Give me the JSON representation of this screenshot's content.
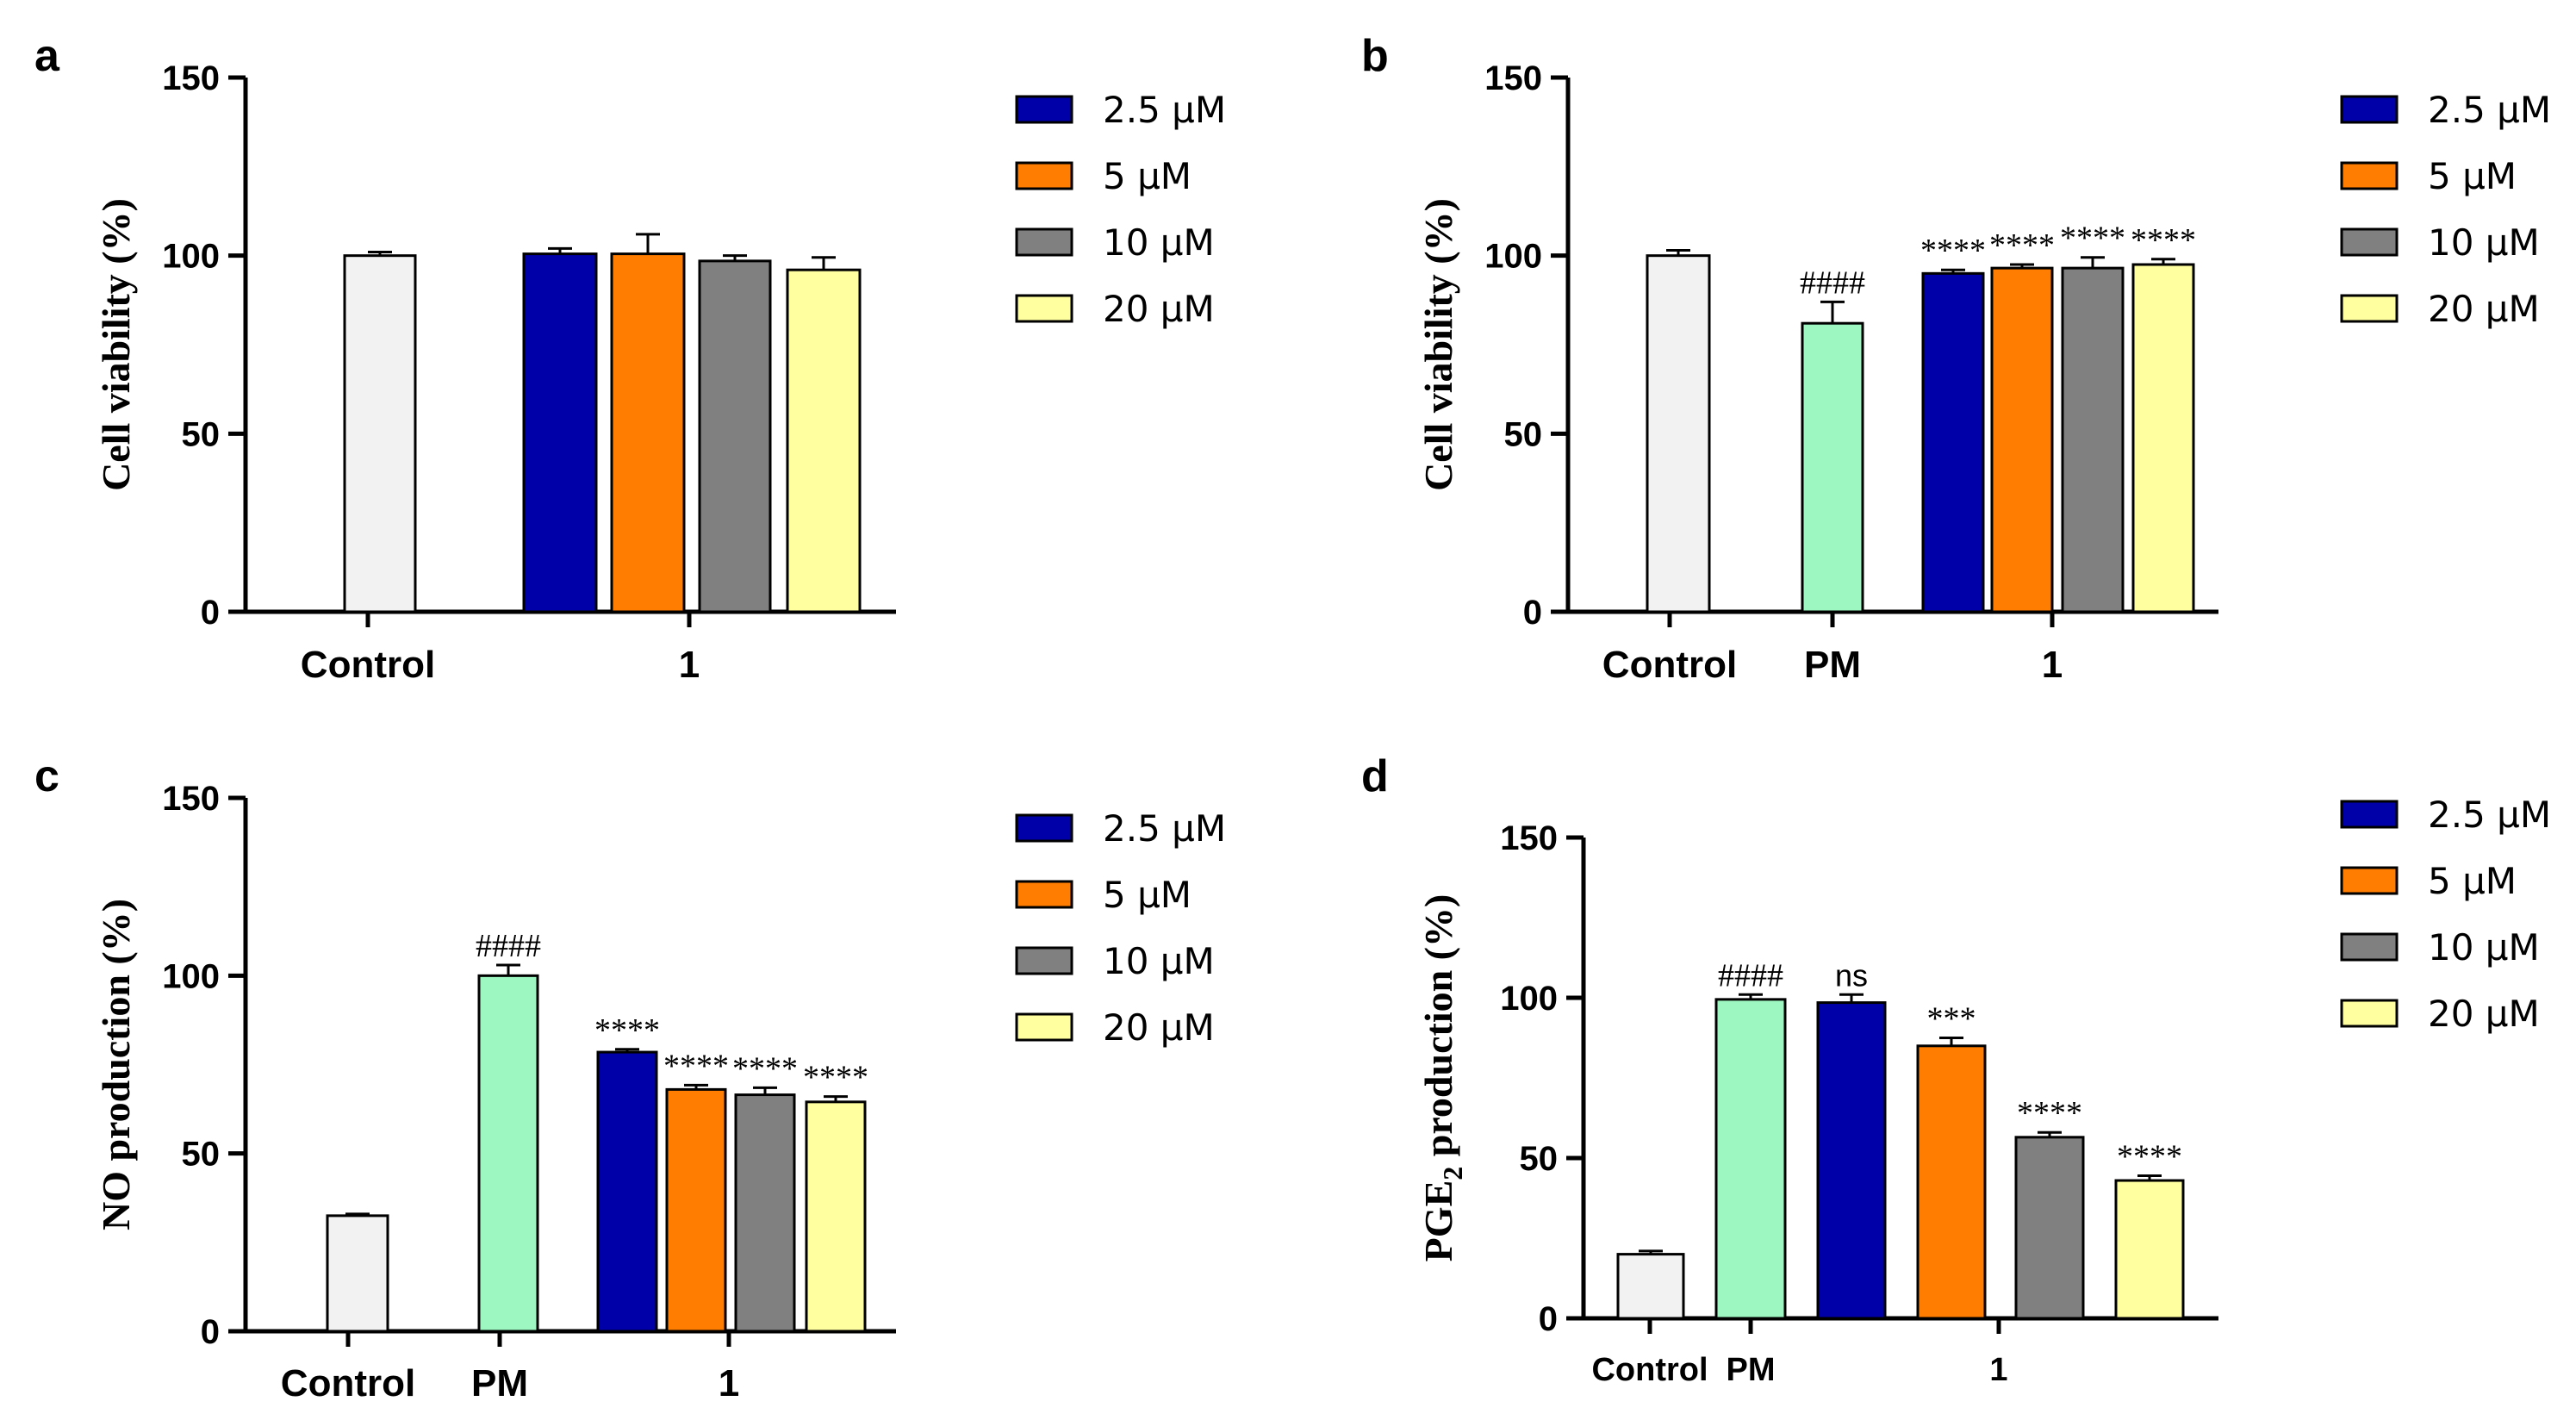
{
  "colors": {
    "control": "#f2f2f2",
    "pm": "#9cf7c0",
    "c2_5": "#0000a8",
    "c5": "#ff7d00",
    "c10": "#808080",
    "c20": "#ffffa0",
    "edge": "#000000"
  },
  "chart_data": [
    {
      "id": "a",
      "type": "bar",
      "panel_label": "a",
      "ylabel": "Cell viability (%)",
      "ylim": [
        0,
        150
      ],
      "yticks": [
        "0",
        "50",
        "100",
        "150"
      ],
      "group_labels": [
        "Control",
        "1"
      ],
      "bars": [
        {
          "label": "Control",
          "value": 100,
          "error": 1,
          "color": "control",
          "annotation": ""
        },
        {
          "label": "2.5 μM",
          "value": 100.5,
          "error": 1.5,
          "color": "c2_5",
          "annotation": ""
        },
        {
          "label": "5 μM",
          "value": 100.5,
          "error": 5.5,
          "color": "c5",
          "annotation": ""
        },
        {
          "label": "10 μM",
          "value": 98.5,
          "error": 1.5,
          "color": "c10",
          "annotation": ""
        },
        {
          "label": "20 μM",
          "value": 96,
          "error": 3.5,
          "color": "c20",
          "annotation": ""
        }
      ],
      "legend": [
        {
          "label": "2.5 μM",
          "color": "c2_5"
        },
        {
          "label": "5 μM",
          "color": "c5"
        },
        {
          "label": "10 μM",
          "color": "c10"
        },
        {
          "label": "20 μM",
          "color": "c20"
        }
      ]
    },
    {
      "id": "b",
      "type": "bar",
      "panel_label": "b",
      "ylabel": "Cell viability (%)",
      "ylim": [
        0,
        150
      ],
      "yticks": [
        "0",
        "50",
        "100",
        "150"
      ],
      "group_labels": [
        "Control",
        "PM",
        "1"
      ],
      "bars": [
        {
          "label": "Control",
          "value": 100,
          "error": 1.5,
          "color": "control",
          "annotation": ""
        },
        {
          "label": "PM",
          "value": 81,
          "error": 6,
          "color": "pm",
          "annotation": "####"
        },
        {
          "label": "2.5 μM",
          "value": 95,
          "error": 1,
          "color": "c2_5",
          "annotation": "****"
        },
        {
          "label": "5 μM",
          "value": 96.5,
          "error": 1,
          "color": "c5",
          "annotation": "****"
        },
        {
          "label": "10 μM",
          "value": 96.5,
          "error": 3,
          "color": "c10",
          "annotation": "****"
        },
        {
          "label": "20 μM",
          "value": 97.5,
          "error": 1.5,
          "color": "c20",
          "annotation": "****"
        }
      ],
      "legend": [
        {
          "label": "2.5 μM",
          "color": "c2_5"
        },
        {
          "label": "5 μM",
          "color": "c5"
        },
        {
          "label": "10 μM",
          "color": "c10"
        },
        {
          "label": "20 μM",
          "color": "c20"
        }
      ]
    },
    {
      "id": "c",
      "type": "bar",
      "panel_label": "c",
      "ylabel": "NO production (%)",
      "ylim": [
        0,
        150
      ],
      "yticks": [
        "0",
        "50",
        "100",
        "150"
      ],
      "group_labels": [
        "Control",
        "PM",
        "1"
      ],
      "bars": [
        {
          "label": "Control",
          "value": 32.5,
          "error": 0.5,
          "color": "control",
          "annotation": ""
        },
        {
          "label": "PM",
          "value": 100,
          "error": 3,
          "color": "pm",
          "annotation": "####"
        },
        {
          "label": "2.5 μM",
          "value": 78.5,
          "error": 0.8,
          "color": "c2_5",
          "annotation": "****"
        },
        {
          "label": "5 μM",
          "value": 68,
          "error": 1.2,
          "color": "c5",
          "annotation": "****"
        },
        {
          "label": "10 μM",
          "value": 66.5,
          "error": 2,
          "color": "c10",
          "annotation": "****"
        },
        {
          "label": "20 μM",
          "value": 64.5,
          "error": 1.5,
          "color": "c20",
          "annotation": "****"
        }
      ],
      "legend": [
        {
          "label": "2.5 μM",
          "color": "c2_5"
        },
        {
          "label": "5 μM",
          "color": "c5"
        },
        {
          "label": "10 μM",
          "color": "c10"
        },
        {
          "label": "20 μM",
          "color": "c20"
        }
      ]
    },
    {
      "id": "d",
      "type": "bar",
      "panel_label": "d",
      "ylabel_main": "PGE",
      "ylabel_sub": "2",
      "ylabel_rest": " production (%)",
      "ylim": [
        0,
        150
      ],
      "yticks": [
        "0",
        "50",
        "100",
        "150"
      ],
      "group_labels": [
        "Control",
        "PM",
        "1"
      ],
      "bars": [
        {
          "label": "Control",
          "value": 20,
          "error": 1,
          "color": "control",
          "annotation": ""
        },
        {
          "label": "PM",
          "value": 99.5,
          "error": 1.5,
          "color": "pm",
          "annotation": "####"
        },
        {
          "label": "2.5 μM",
          "value": 98.5,
          "error": 2.5,
          "color": "c2_5",
          "annotation": "ns"
        },
        {
          "label": "5 μM",
          "value": 85,
          "error": 2.5,
          "color": "c5",
          "annotation": "***"
        },
        {
          "label": "10 μM",
          "value": 56.5,
          "error": 1.5,
          "color": "c10",
          "annotation": "****"
        },
        {
          "label": "20 μM",
          "value": 43,
          "error": 1.5,
          "color": "c20",
          "annotation": "****"
        }
      ],
      "legend": [
        {
          "label": "2.5 μM",
          "color": "c2_5"
        },
        {
          "label": "5 μM",
          "color": "c5"
        },
        {
          "label": "10 μM",
          "color": "c10"
        },
        {
          "label": "20 μM",
          "color": "c20"
        }
      ]
    }
  ]
}
